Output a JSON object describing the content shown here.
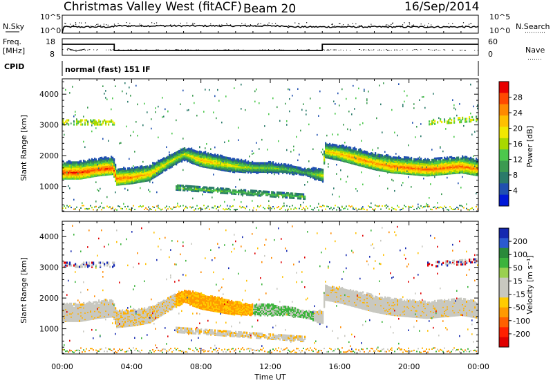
{
  "header": {
    "station": "Christmas Valley West (fitACF)",
    "beam": "Beam 20",
    "date": "16/Sep/2014"
  },
  "param_labels": {
    "nsky": "N.Sky",
    "nsearch": "N.Search",
    "freq_line1": "Freq.",
    "freq_line2": "[MHz]",
    "nave": "Nave",
    "cpid": "CPID",
    "cpid_value": "normal (fast) 151 IF"
  },
  "param_ticks": {
    "noise_top": "10^5",
    "noise_bottom": "10^0",
    "freq_top": "18",
    "freq_bottom": "8",
    "nave_top": "60",
    "nave_bottom": "0"
  },
  "panels": {
    "power": {
      "ylabel": "Slant Range [km]",
      "colorbar_label": "Power [dB]"
    },
    "velocity": {
      "ylabel": "Slant Range [km]",
      "colorbar_label": "Velocity [m s⁻¹]"
    }
  },
  "range_ticks": [
    "4000",
    "3000",
    "2000",
    "1000"
  ],
  "time_ticks": [
    "00:00",
    "04:00",
    "08:00",
    "12:00",
    "16:00",
    "20:00",
    "00:00"
  ],
  "xlabel": "Time UT",
  "power_colorbar": {
    "ticks": [
      "28",
      "24",
      "20",
      "16",
      "12",
      "8",
      "4"
    ],
    "colors": [
      "#e80000",
      "#ff4a00",
      "#ff8a00",
      "#ffc000",
      "#f2e800",
      "#a8d800",
      "#4cc84c",
      "#3c9a50",
      "#2a7a6a",
      "#2050b0",
      "#0018d8"
    ]
  },
  "velocity_colorbar": {
    "ticks": [
      "200",
      "100",
      "50",
      "15",
      "-15",
      "-50",
      "-100",
      "-200"
    ],
    "colors": [
      "#1428b0",
      "#2a5ad0",
      "#2a8a3a",
      "#3cb43c",
      "#9ad050",
      "#c8c8c0",
      "#c8c8c0",
      "#ffcc00",
      "#ff9a00",
      "#ff6000",
      "#ff2000",
      "#e00000"
    ]
  },
  "chart_data": {
    "type": "heatmap",
    "title": "Christmas Valley West (fitACF) Beam 20 16/Sep/2014",
    "xlabel": "Time UT",
    "ylabel": "Slant Range [km]",
    "x_range": [
      "00:00",
      "24:00"
    ],
    "y_range": [
      180,
      4500
    ],
    "panels": [
      {
        "name": "Power",
        "unit": "dB",
        "color_range": [
          0,
          30
        ],
        "main_echo_band": {
          "time_hours": [
            0,
            1,
            2,
            2.9,
            3.1,
            4,
            5,
            6,
            7,
            8,
            9,
            10,
            11,
            12,
            13,
            14,
            15,
            15.1,
            16,
            17,
            18,
            19,
            20,
            21,
            22,
            23,
            24
          ],
          "range_km": [
            1500,
            1500,
            1600,
            1650,
            1300,
            1350,
            1450,
            1800,
            2100,
            1900,
            1800,
            1700,
            1650,
            1650,
            1600,
            1500,
            1400,
            2200,
            2100,
            1950,
            1800,
            1700,
            1650,
            1600,
            1650,
            1700,
            1600
          ],
          "peak_power_db": [
            28,
            28,
            27,
            27,
            26,
            24,
            22,
            18,
            16,
            22,
            20,
            18,
            14,
            14,
            12,
            10,
            18,
            20,
            22,
            24,
            24,
            25,
            26,
            26,
            26,
            26,
            24
          ]
        }
      },
      {
        "name": "Velocity",
        "unit": "m s⁻¹",
        "color_range": [
          -250,
          250
        ],
        "main_echo_band_velocity": "mostly -15 to 15 (ground scatter), -50 to -100 near 08:00–11:00"
      }
    ]
  }
}
